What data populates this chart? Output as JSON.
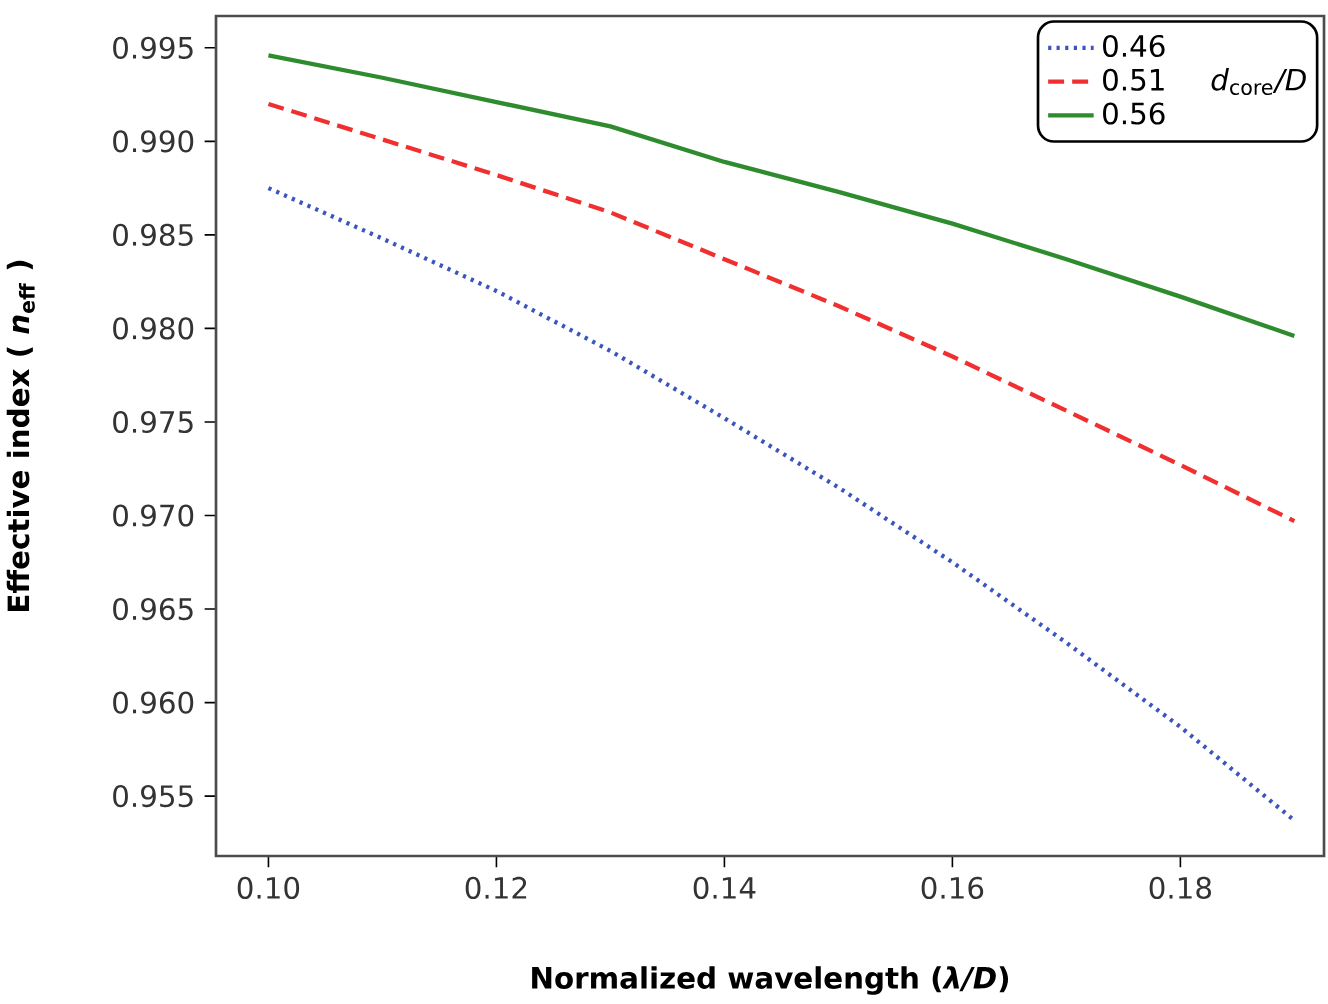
{
  "chart_data": {
    "type": "line",
    "xlabel": "Normalized wavelength (*λ/D*)",
    "ylabel": "Effective index ( *n*$_{eff}$ )",
    "legend_title": "*d*$_{core}$*/D*",
    "x": [
      0.1,
      0.11,
      0.12,
      0.13,
      0.14,
      0.15,
      0.16,
      0.17,
      0.18,
      0.19
    ],
    "series": [
      {
        "name": "0.46",
        "color": "#3b55c0",
        "line_style": "dotted",
        "values": [
          0.9875,
          0.9848,
          0.982,
          0.9788,
          0.9752,
          0.9715,
          0.9675,
          0.9632,
          0.9587,
          0.9537
        ]
      },
      {
        "name": "0.51",
        "color": "#f03030",
        "line_style": "dashed",
        "values": [
          0.992,
          0.9901,
          0.9882,
          0.9862,
          0.9837,
          0.9812,
          0.9785,
          0.9756,
          0.9727,
          0.9697
        ]
      },
      {
        "name": "0.56",
        "color": "#2e8b2e",
        "line_style": "solid",
        "values": [
          0.9946,
          0.9934,
          0.9921,
          0.9908,
          0.9889,
          0.9873,
          0.9856,
          0.9837,
          0.9817,
          0.9796
        ]
      }
    ],
    "xlim": [
      0.0954,
      0.1926
    ],
    "ylim": [
      0.9518,
      0.9967
    ],
    "xticks": [
      {
        "value": 0.1,
        "label": "0.10"
      },
      0.12,
      0.14,
      0.16,
      0.18
    ],
    "yticks": [
      0.955,
      {
        "value": 0.96,
        "label": "0.960"
      },
      0.965,
      {
        "value": 0.97,
        "label": "0.970"
      },
      0.975,
      {
        "value": 0.98,
        "label": "0.980"
      },
      0.985,
      {
        "value": 0.99,
        "label": "0.990"
      },
      0.995
    ],
    "legend": "top right"
  }
}
